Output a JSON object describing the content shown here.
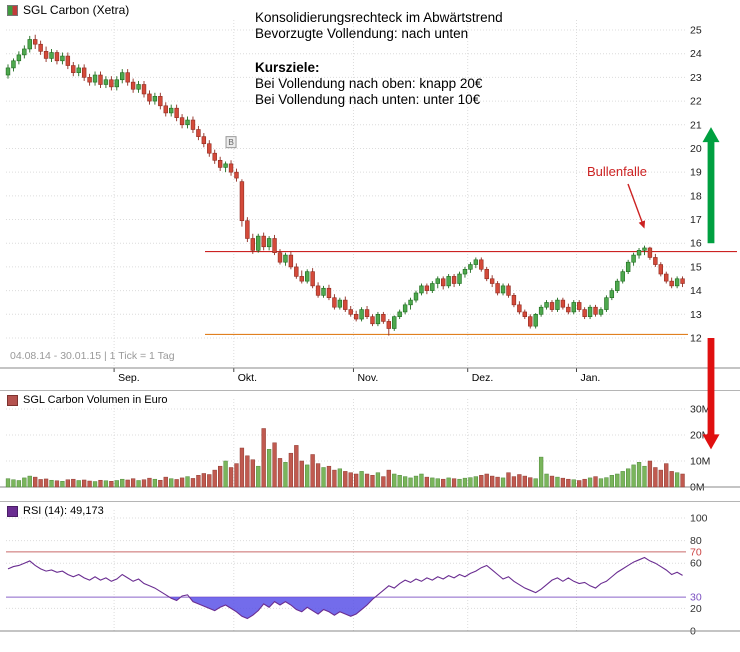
{
  "header": {
    "title": "SGL Carbon (Xetra)"
  },
  "price_panel": {
    "date_range": "04.08.14 - 30.01.15",
    "separator": "|",
    "tick_info": "1 Tick = 1 Tag",
    "annotations": {
      "line1": "Konsolidierungsrechteck im Abwärtstrend",
      "line2": "Bevorzugte Vollendung: nach unten",
      "kursziele_title": "Kursziele:",
      "target_up": "Bei Vollendung nach oben: knapp 20€",
      "target_down": "Bei Vollendung nach unten: unter 10€",
      "bullenfalle": "Bullenfalle"
    },
    "marker": {
      "label": "B",
      "index": 41,
      "value": 19.95
    },
    "bullenfalle_arrow": {
      "to_index": 117,
      "to_value": 16.45
    }
  },
  "volume_panel": {
    "title": "SGL Carbon Volumen in Euro"
  },
  "rsi_panel": {
    "title": "RSI (14): 49,173"
  },
  "colors": {
    "up": "#4ea84e",
    "up_dark": "#1c6b1c",
    "down": "#d44a3a",
    "down_dark": "#8f2a1f",
    "volume_up": "#7ab55c",
    "volume_up_dark": "#4e8a38",
    "volume_down": "#c05a50",
    "volume_down_dark": "#8f3a30",
    "resistance": "#cc2222",
    "support": "#e08020",
    "arrow_up": "#00a040",
    "arrow_down": "#e01010",
    "rsi_line": "#6a2d91",
    "rsi_fill": "#5b52e8",
    "rsi_70_line": "#c96a6a",
    "rsi_30_line": "#8a63c9",
    "grid": "#dcdcdc",
    "axis": "#888888"
  },
  "chart_data": [
    {
      "type": "candlestick",
      "name": "SGL Carbon (Xetra)",
      "ylim": [
        11.6,
        25.5
      ],
      "y_ticks": [
        25,
        24,
        23,
        22,
        21,
        20,
        19,
        18,
        17,
        16,
        15,
        14,
        13,
        12
      ],
      "months": [
        {
          "label": "Sep.",
          "index": 20
        },
        {
          "label": "Okt.",
          "index": 42
        },
        {
          "label": "Nov.",
          "index": 64
        },
        {
          "label": "Dez.",
          "index": 85
        },
        {
          "label": "Jan.",
          "index": 105
        }
      ],
      "resistance": 15.65,
      "support": 12.15,
      "arrows": [
        {
          "direction": "up",
          "from_value": 16.0,
          "to_value": 20.9
        },
        {
          "direction": "down",
          "from_value": 12.0,
          "to_value": 7.3
        }
      ],
      "candles": [
        [
          23.1,
          23.55,
          22.95,
          23.4
        ],
        [
          23.4,
          23.8,
          23.25,
          23.7
        ],
        [
          23.7,
          24.1,
          23.55,
          23.95
        ],
        [
          23.95,
          24.35,
          23.8,
          24.2
        ],
        [
          24.2,
          24.75,
          24.05,
          24.6
        ],
        [
          24.6,
          24.8,
          24.2,
          24.4
        ],
        [
          24.4,
          24.55,
          23.95,
          24.1
        ],
        [
          24.1,
          24.3,
          23.65,
          23.8
        ],
        [
          23.8,
          24.2,
          23.65,
          24.05
        ],
        [
          24.05,
          24.15,
          23.55,
          23.7
        ],
        [
          23.7,
          24.05,
          23.55,
          23.9
        ],
        [
          23.9,
          24.05,
          23.35,
          23.5
        ],
        [
          23.5,
          23.65,
          23.05,
          23.2
        ],
        [
          23.2,
          23.55,
          23.05,
          23.4
        ],
        [
          23.4,
          23.55,
          22.85,
          23.0
        ],
        [
          23.0,
          23.15,
          22.65,
          22.8
        ],
        [
          22.8,
          23.25,
          22.65,
          23.1
        ],
        [
          23.1,
          23.25,
          22.55,
          22.7
        ],
        [
          22.7,
          23.05,
          22.55,
          22.9
        ],
        [
          22.9,
          23.05,
          22.45,
          22.6
        ],
        [
          22.6,
          23.05,
          22.45,
          22.9
        ],
        [
          22.9,
          23.35,
          22.75,
          23.2
        ],
        [
          23.2,
          23.35,
          22.65,
          22.8
        ],
        [
          22.8,
          22.95,
          22.35,
          22.5
        ],
        [
          22.5,
          22.85,
          22.35,
          22.7
        ],
        [
          22.7,
          22.85,
          22.15,
          22.3
        ],
        [
          22.3,
          22.45,
          21.85,
          22.0
        ],
        [
          22.0,
          22.35,
          21.85,
          22.2
        ],
        [
          22.2,
          22.35,
          21.65,
          21.8
        ],
        [
          21.8,
          21.95,
          21.35,
          21.5
        ],
        [
          21.5,
          21.85,
          21.35,
          21.7
        ],
        [
          21.7,
          21.85,
          21.15,
          21.3
        ],
        [
          21.3,
          21.45,
          20.85,
          21.0
        ],
        [
          21.0,
          21.35,
          20.85,
          21.2
        ],
        [
          21.2,
          21.35,
          20.65,
          20.8
        ],
        [
          20.8,
          20.95,
          20.35,
          20.5
        ],
        [
          20.5,
          20.65,
          20.05,
          20.2
        ],
        [
          20.2,
          20.35,
          19.65,
          19.8
        ],
        [
          19.8,
          19.95,
          19.35,
          19.5
        ],
        [
          19.5,
          19.65,
          19.05,
          19.2
        ],
        [
          19.2,
          19.45,
          19.0,
          19.35
        ],
        [
          19.35,
          19.5,
          18.85,
          19.0
        ],
        [
          19.0,
          19.15,
          18.6,
          18.75
        ],
        [
          18.6,
          18.7,
          16.7,
          16.95
        ],
        [
          16.95,
          17.1,
          16.05,
          16.2
        ],
        [
          16.2,
          16.4,
          15.55,
          15.7
        ],
        [
          15.7,
          16.4,
          15.6,
          16.3
        ],
        [
          16.3,
          16.45,
          15.7,
          15.85
        ],
        [
          15.85,
          16.3,
          15.7,
          16.2
        ],
        [
          16.2,
          16.35,
          15.5,
          15.6
        ],
        [
          15.6,
          15.75,
          15.1,
          15.2
        ],
        [
          15.2,
          15.6,
          15.05,
          15.5
        ],
        [
          15.5,
          15.65,
          14.9,
          15.0
        ],
        [
          15.0,
          15.15,
          14.5,
          14.6
        ],
        [
          14.6,
          14.85,
          14.3,
          14.4
        ],
        [
          14.4,
          14.9,
          14.3,
          14.8
        ],
        [
          14.8,
          14.95,
          14.1,
          14.2
        ],
        [
          14.2,
          14.35,
          13.7,
          13.8
        ],
        [
          13.8,
          14.2,
          13.7,
          14.1
        ],
        [
          14.1,
          14.25,
          13.6,
          13.7
        ],
        [
          13.7,
          13.85,
          13.2,
          13.3
        ],
        [
          13.3,
          13.7,
          13.2,
          13.6
        ],
        [
          13.6,
          13.75,
          13.1,
          13.2
        ],
        [
          13.2,
          13.35,
          12.9,
          13.0
        ],
        [
          13.0,
          13.15,
          12.7,
          12.8
        ],
        [
          12.8,
          13.3,
          12.7,
          13.2
        ],
        [
          13.2,
          13.35,
          12.8,
          12.9
        ],
        [
          12.9,
          13.0,
          12.5,
          12.6
        ],
        [
          12.6,
          13.1,
          12.5,
          13.0
        ],
        [
          13.0,
          13.1,
          12.6,
          12.7
        ],
        [
          12.7,
          12.8,
          12.1,
          12.4
        ],
        [
          12.4,
          12.95,
          12.3,
          12.9
        ],
        [
          12.9,
          13.2,
          12.8,
          13.1
        ],
        [
          13.1,
          13.5,
          13.0,
          13.4
        ],
        [
          13.4,
          13.7,
          13.2,
          13.6
        ],
        [
          13.6,
          14.0,
          13.5,
          13.9
        ],
        [
          13.9,
          14.3,
          13.8,
          14.2
        ],
        [
          14.2,
          14.3,
          13.85,
          14.0
        ],
        [
          14.0,
          14.4,
          13.9,
          14.3
        ],
        [
          14.3,
          14.6,
          14.1,
          14.5
        ],
        [
          14.5,
          14.6,
          14.05,
          14.2
        ],
        [
          14.2,
          14.7,
          14.1,
          14.6
        ],
        [
          14.6,
          14.7,
          14.15,
          14.3
        ],
        [
          14.3,
          14.8,
          14.2,
          14.7
        ],
        [
          14.7,
          15.0,
          14.55,
          14.9
        ],
        [
          14.9,
          15.2,
          14.75,
          15.1
        ],
        [
          15.1,
          15.4,
          14.95,
          15.3
        ],
        [
          15.3,
          15.4,
          14.8,
          14.9
        ],
        [
          14.9,
          15.0,
          14.4,
          14.5
        ],
        [
          14.5,
          14.65,
          14.15,
          14.3
        ],
        [
          14.3,
          14.4,
          13.8,
          13.9
        ],
        [
          13.9,
          14.3,
          13.8,
          14.2
        ],
        [
          14.2,
          14.3,
          13.7,
          13.8
        ],
        [
          13.8,
          13.9,
          13.3,
          13.4
        ],
        [
          13.4,
          13.55,
          13.0,
          13.1
        ],
        [
          13.1,
          13.2,
          12.8,
          12.9
        ],
        [
          12.9,
          13.0,
          12.4,
          12.5
        ],
        [
          12.5,
          13.05,
          12.4,
          13.0
        ],
        [
          13.0,
          13.4,
          12.9,
          13.3
        ],
        [
          13.3,
          13.6,
          13.2,
          13.5
        ],
        [
          13.5,
          13.6,
          13.1,
          13.2
        ],
        [
          13.2,
          13.7,
          13.1,
          13.6
        ],
        [
          13.6,
          13.7,
          13.2,
          13.3
        ],
        [
          13.3,
          13.45,
          13.0,
          13.1
        ],
        [
          13.1,
          13.6,
          13.0,
          13.5
        ],
        [
          13.5,
          13.6,
          13.1,
          13.2
        ],
        [
          13.2,
          13.3,
          12.8,
          12.9
        ],
        [
          12.9,
          13.4,
          12.8,
          13.3
        ],
        [
          13.3,
          13.4,
          12.9,
          13.0
        ],
        [
          13.0,
          13.3,
          12.9,
          13.2
        ],
        [
          13.2,
          13.8,
          13.1,
          13.7
        ],
        [
          13.7,
          14.1,
          13.6,
          14.0
        ],
        [
          14.0,
          14.5,
          13.9,
          14.4
        ],
        [
          14.4,
          14.9,
          14.3,
          14.8
        ],
        [
          14.8,
          15.3,
          14.7,
          15.2
        ],
        [
          15.2,
          15.6,
          15.05,
          15.5
        ],
        [
          15.5,
          15.8,
          15.35,
          15.7
        ],
        [
          15.7,
          15.9,
          15.5,
          15.8
        ],
        [
          15.8,
          15.85,
          15.3,
          15.4
        ],
        [
          15.4,
          15.55,
          15.0,
          15.1
        ],
        [
          15.1,
          15.2,
          14.6,
          14.7
        ],
        [
          14.7,
          14.8,
          14.3,
          14.4
        ],
        [
          14.4,
          14.55,
          14.1,
          14.2
        ],
        [
          14.2,
          14.6,
          14.1,
          14.5
        ],
        [
          14.5,
          14.6,
          14.15,
          14.3
        ]
      ]
    },
    {
      "type": "bar",
      "name": "SGL Carbon Volumen in Euro",
      "unit": "M",
      "ylim": [
        0,
        30
      ],
      "y_ticks": [
        {
          "value": 30,
          "label": "30M"
        },
        {
          "value": 20,
          "label": "20M"
        },
        {
          "value": 10,
          "label": "10M"
        },
        {
          "value": 0,
          "label": "0M"
        }
      ],
      "values": [
        3.2,
        2.8,
        2.5,
        3.5,
        4.2,
        3.8,
        2.9,
        3.1,
        2.6,
        2.4,
        2.2,
        2.8,
        3.0,
        2.5,
        2.7,
        2.3,
        2.1,
        2.6,
        2.4,
        2.2,
        2.5,
        3.0,
        2.7,
        3.2,
        2.5,
        2.8,
        3.4,
        3.0,
        2.6,
        3.8,
        3.2,
        2.9,
        3.5,
        4.0,
        3.3,
        4.5,
        5.2,
        4.8,
        6.5,
        8.0,
        10.0,
        7.5,
        9.0,
        15.0,
        12.0,
        10.5,
        8.0,
        22.5,
        14.5,
        17.0,
        11.0,
        9.5,
        13.0,
        16.0,
        10.0,
        8.5,
        12.5,
        9.0,
        7.5,
        8.0,
        6.5,
        7.0,
        6.0,
        5.5,
        5.0,
        6.0,
        5.0,
        4.5,
        5.5,
        4.0,
        6.5,
        5.0,
        4.5,
        4.0,
        3.5,
        4.2,
        5.0,
        3.8,
        3.5,
        3.2,
        3.0,
        3.5,
        3.2,
        3.0,
        3.4,
        3.6,
        4.0,
        4.5,
        5.0,
        4.2,
        3.8,
        3.5,
        5.5,
        4.0,
        4.8,
        4.2,
        3.6,
        3.2,
        11.5,
        5.0,
        4.2,
        3.8,
        3.4,
        3.0,
        2.8,
        2.5,
        3.0,
        3.5,
        4.0,
        3.2,
        3.6,
        4.5,
        5.0,
        6.0,
        7.0,
        8.5,
        9.5,
        8.0,
        10.0,
        7.5,
        6.5,
        9.0,
        6.0,
        5.5,
        5.0
      ]
    },
    {
      "type": "line",
      "name": "RSI (14)",
      "last_value": 49.173,
      "ylim": [
        0,
        100
      ],
      "gridlines": [
        20,
        60,
        80,
        100
      ],
      "thresholds": [
        {
          "value": 70
        },
        {
          "value": 30
        }
      ],
      "y_labels": [
        {
          "value": 100,
          "label": "100",
          "color": "#333333"
        },
        {
          "value": 80,
          "label": "80",
          "color": "#333333"
        },
        {
          "value": 70,
          "label": "70",
          "color": "#cc4444"
        },
        {
          "value": 60,
          "label": "60",
          "color": "#333333"
        },
        {
          "value": 30,
          "label": "30",
          "color": "#7a4fc0"
        },
        {
          "value": 20,
          "label": "20",
          "color": "#333333"
        },
        {
          "value": 0,
          "label": "0",
          "color": "#333333"
        }
      ],
      "values": [
        55,
        57,
        58,
        60,
        62,
        58,
        55,
        53,
        54,
        52,
        53,
        50,
        48,
        50,
        47,
        45,
        48,
        45,
        47,
        44,
        46,
        50,
        47,
        44,
        46,
        42,
        40,
        38,
        35,
        32,
        29,
        27,
        31,
        32,
        26,
        24,
        22,
        20,
        18,
        21,
        23,
        20,
        17,
        13,
        11,
        14,
        18,
        24,
        21,
        26,
        23,
        26,
        23,
        19,
        17,
        21,
        18,
        15,
        19,
        17,
        14,
        17,
        15,
        13,
        15,
        19,
        23,
        28,
        32,
        36,
        40,
        38,
        42,
        45,
        43,
        46,
        44,
        47,
        45,
        48,
        46,
        49,
        47,
        50,
        48,
        51,
        53,
        56,
        58,
        54,
        50,
        46,
        48,
        44,
        41,
        38,
        36,
        34,
        37,
        41,
        45,
        47,
        44,
        47,
        44,
        42,
        43,
        40,
        38,
        42,
        44,
        48,
        52,
        55,
        58,
        61,
        63,
        65,
        62,
        60,
        57,
        54,
        50,
        52,
        49.2
      ]
    }
  ]
}
